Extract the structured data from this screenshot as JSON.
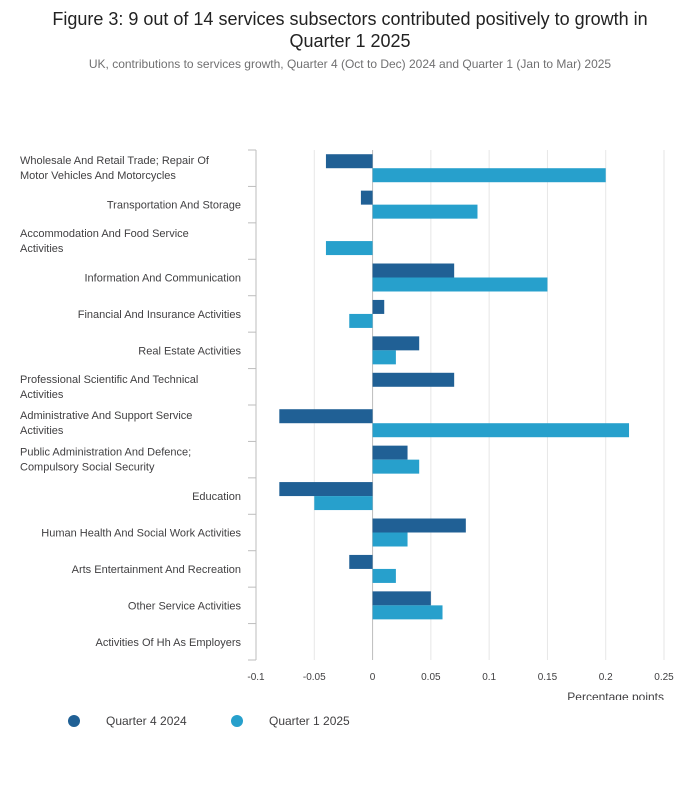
{
  "header": {
    "title_line1": "Figure 3: 9 out of 14 services subsectors contributed positively to growth in",
    "title_line2": "Quarter 1 2025",
    "subtitle": "UK, contributions to services growth, Quarter 4 (Oct to Dec) 2024 and Quarter 1 (Jan to Mar) 2025"
  },
  "chart_data": {
    "type": "bar",
    "orientation": "horizontal",
    "title": "Figure 3: 9 out of 14 services subsectors contributed positively to growth in Quarter 1 2025",
    "subtitle": "UK, contributions to services growth, Quarter 4 (Oct to Dec) 2024 and Quarter 1 (Jan to Mar) 2025",
    "xlabel": "Percentage points",
    "ylabel": "",
    "xlim": [
      -0.1,
      0.25
    ],
    "xticks": [
      -0.1,
      -0.05,
      0,
      0.05,
      0.1,
      0.15,
      0.2,
      0.25
    ],
    "xtick_labels": [
      "-0.1",
      "-0.05",
      "0",
      "0.05",
      "0.1",
      "0.15",
      "0.2",
      "0.25"
    ],
    "grid": "vertical",
    "legend_position": "bottom-left",
    "categories": [
      [
        "Wholesale And Retail Trade; Repair Of",
        "Motor Vehicles And Motorcycles"
      ],
      [
        "Transportation And Storage"
      ],
      [
        "Accommodation And Food Service",
        "Activities"
      ],
      [
        "Information And Communication"
      ],
      [
        "Financial And Insurance Activities"
      ],
      [
        "Real Estate Activities"
      ],
      [
        "Professional Scientific And Technical",
        "Activities"
      ],
      [
        "Administrative And Support Service",
        "Activities"
      ],
      [
        "Public Administration And Defence;",
        "Compulsory Social Security"
      ],
      [
        "Education"
      ],
      [
        "Human Health And Social Work Activities"
      ],
      [
        "Arts Entertainment And Recreation"
      ],
      [
        "Other Service Activities"
      ],
      [
        "Activities Of Hh As Employers"
      ]
    ],
    "series": [
      {
        "name": "Quarter 4 2024",
        "color": "#206095",
        "values": [
          -0.04,
          -0.01,
          0,
          0.07,
          0.01,
          0.04,
          0.07,
          -0.08,
          0.03,
          -0.08,
          0.08,
          -0.02,
          0.05,
          0
        ]
      },
      {
        "name": "Quarter 1 2025",
        "color": "#27a0cc",
        "values": [
          0.2,
          0.09,
          -0.04,
          0.15,
          -0.02,
          0.02,
          0,
          0.22,
          0.04,
          -0.05,
          0.03,
          0.02,
          0.06,
          0
        ]
      }
    ]
  }
}
